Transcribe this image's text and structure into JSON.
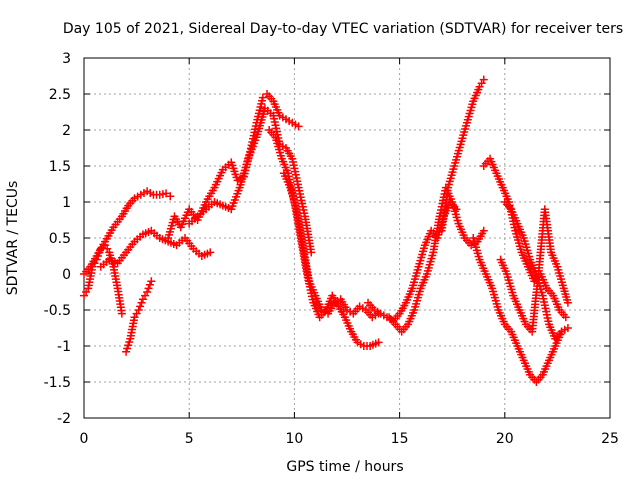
{
  "chart_data": {
    "type": "scatter",
    "title": "Day 105 of 2021, Sidereal Day-to-day VTEC variation (SDTVAR) for receiver ters",
    "xlabel": "GPS time / hours",
    "ylabel": "SDTVAR / TECUs",
    "xlim": [
      0,
      25
    ],
    "ylim": [
      -2,
      3
    ],
    "x_ticks": [
      "0",
      "5",
      "10",
      "15",
      "20",
      "25"
    ],
    "y_ticks": [
      "-2",
      "-1.5",
      "-1",
      "-0.5",
      "0",
      "0.5",
      "1",
      "1.5",
      "2",
      "2.5",
      "3"
    ],
    "grid": true,
    "marker": "plus",
    "color": "#ff0000",
    "series": [
      {
        "x": [
          0,
          0.2,
          0.4,
          0.6,
          0.8,
          1.0,
          1.2,
          1.4,
          1.6,
          1.8
        ],
        "y": [
          -0.3,
          -0.2,
          0.1,
          0.2,
          0.35,
          0.4,
          0.3,
          0.1,
          -0.2,
          -0.55
        ]
      },
      {
        "x": [
          0,
          0.3,
          0.6,
          1.0,
          1.4,
          1.8,
          2.1,
          2.4,
          2.7,
          3.0,
          3.3,
          3.6,
          3.9,
          4.1
        ],
        "y": [
          0.0,
          0.1,
          0.25,
          0.45,
          0.65,
          0.8,
          0.95,
          1.05,
          1.1,
          1.15,
          1.1,
          1.1,
          1.12,
          1.08
        ]
      },
      {
        "x": [
          0.8,
          1.2,
          1.6,
          2.0,
          2.4,
          2.8,
          3.2,
          3.6,
          4.0,
          4.4,
          4.8,
          5.2,
          5.6,
          6.0
        ],
        "y": [
          0.1,
          0.2,
          0.15,
          0.3,
          0.45,
          0.55,
          0.6,
          0.5,
          0.45,
          0.4,
          0.5,
          0.35,
          0.25,
          0.3
        ]
      },
      {
        "x": [
          2.0,
          2.2,
          2.4,
          2.6,
          2.8,
          3.0,
          3.2
        ],
        "y": [
          -1.08,
          -0.9,
          -0.6,
          -0.5,
          -0.35,
          -0.25,
          -0.1
        ]
      },
      {
        "x": [
          4.0,
          4.3,
          4.6,
          5.0,
          5.4,
          5.8,
          6.2,
          6.6,
          7.0,
          7.3,
          7.6,
          7.9,
          8.2,
          8.5,
          8.7,
          9.0,
          9.3,
          9.6,
          9.9,
          10.2
        ],
        "y": [
          0.5,
          0.8,
          0.65,
          0.9,
          0.75,
          1.0,
          1.2,
          1.45,
          1.55,
          1.3,
          1.35,
          1.7,
          2.1,
          2.45,
          2.5,
          2.4,
          2.2,
          2.15,
          2.1,
          2.05
        ]
      },
      {
        "x": [
          5.0,
          5.4,
          5.8,
          6.2,
          6.6,
          7.0,
          7.4,
          7.8,
          8.2,
          8.6,
          9.0,
          9.3,
          9.6,
          9.9,
          10.2,
          10.5,
          10.8
        ],
        "y": [
          0.7,
          0.8,
          0.9,
          1.0,
          0.95,
          0.9,
          1.2,
          1.6,
          1.9,
          2.3,
          2.2,
          1.8,
          1.75,
          1.6,
          1.2,
          0.8,
          0.3
        ]
      },
      {
        "x": [
          8.8,
          9.1,
          9.4,
          9.7,
          10.0,
          10.3,
          10.6,
          10.9,
          11.2,
          11.5,
          11.8,
          12.1,
          12.4,
          12.7,
          13.0,
          13.3,
          13.6,
          14.0
        ],
        "y": [
          2.0,
          1.9,
          1.6,
          1.4,
          1.0,
          0.5,
          0.0,
          -0.4,
          -0.6,
          -0.5,
          -0.3,
          -0.45,
          -0.6,
          -0.8,
          -0.95,
          -1.0,
          -1.0,
          -0.95
        ]
      },
      {
        "x": [
          9.5,
          9.8,
          10.1,
          10.4,
          10.7,
          11.0,
          11.3,
          11.6,
          11.9,
          12.2,
          12.5,
          12.8,
          13.1,
          13.4,
          13.7,
          14.0
        ],
        "y": [
          1.4,
          1.2,
          0.9,
          0.4,
          -0.1,
          -0.3,
          -0.5,
          -0.55,
          -0.4,
          -0.35,
          -0.5,
          -0.55,
          -0.45,
          -0.5,
          -0.6,
          -0.55
        ]
      },
      {
        "x": [
          13.5,
          13.8,
          14.1,
          14.4,
          14.7,
          15.0,
          15.3,
          15.6,
          15.9,
          16.2,
          16.5,
          16.8,
          17.1,
          17.4,
          17.7
        ],
        "y": [
          -0.4,
          -0.5,
          -0.55,
          -0.6,
          -0.65,
          -0.55,
          -0.4,
          -0.2,
          0.1,
          0.4,
          0.6,
          0.5,
          0.8,
          1.0,
          0.9
        ]
      },
      {
        "x": [
          14.5,
          14.8,
          15.1,
          15.4,
          15.7,
          16.0,
          16.3,
          16.6,
          16.9,
          17.2,
          17.5,
          17.8,
          18.1,
          18.4,
          18.7,
          19.0
        ],
        "y": [
          -0.6,
          -0.7,
          -0.8,
          -0.7,
          -0.5,
          -0.2,
          0.0,
          0.3,
          0.8,
          1.2,
          1.0,
          0.7,
          0.5,
          0.4,
          0.45,
          0.6
        ]
      },
      {
        "x": [
          17.0,
          17.3,
          17.6,
          17.9,
          18.2,
          18.5,
          18.8,
          19.0
        ],
        "y": [
          0.6,
          1.2,
          1.5,
          1.8,
          2.1,
          2.4,
          2.6,
          2.7
        ]
      },
      {
        "x": [
          18.5,
          18.8,
          19.1,
          19.4,
          19.7,
          20.0,
          20.3,
          20.6,
          20.9,
          21.2,
          21.5,
          21.8,
          22.1,
          22.4,
          22.7,
          23.0
        ],
        "y": [
          0.5,
          0.2,
          0.0,
          -0.2,
          -0.5,
          -0.7,
          -0.8,
          -1.0,
          -1.2,
          -1.4,
          -1.5,
          -1.4,
          -1.2,
          -1.0,
          -0.8,
          -0.75
        ]
      },
      {
        "x": [
          19.0,
          19.3,
          19.6,
          19.9,
          20.2,
          20.5,
          20.8,
          21.1,
          21.4,
          21.7,
          22.0,
          22.3,
          22.6,
          22.9
        ],
        "y": [
          1.5,
          1.6,
          1.4,
          1.2,
          1.0,
          0.6,
          0.3,
          0.1,
          -0.1,
          0.0,
          -0.2,
          -0.3,
          -0.5,
          -0.6
        ]
      },
      {
        "x": [
          19.8,
          20.1,
          20.4,
          20.7,
          21.0,
          21.3,
          21.6,
          21.9,
          22.2,
          22.5,
          22.8,
          23.0
        ],
        "y": [
          0.2,
          0.0,
          -0.3,
          -0.5,
          -0.7,
          -0.8,
          0.0,
          0.9,
          0.3,
          0.1,
          -0.2,
          -0.4
        ]
      },
      {
        "x": [
          20.0,
          20.3,
          20.6,
          20.9,
          21.2,
          21.5,
          21.8,
          22.1,
          22.4,
          22.7
        ],
        "y": [
          1.0,
          0.9,
          0.7,
          0.5,
          0.2,
          0.0,
          -0.3,
          -0.7,
          -0.9,
          -0.8
        ]
      }
    ]
  }
}
